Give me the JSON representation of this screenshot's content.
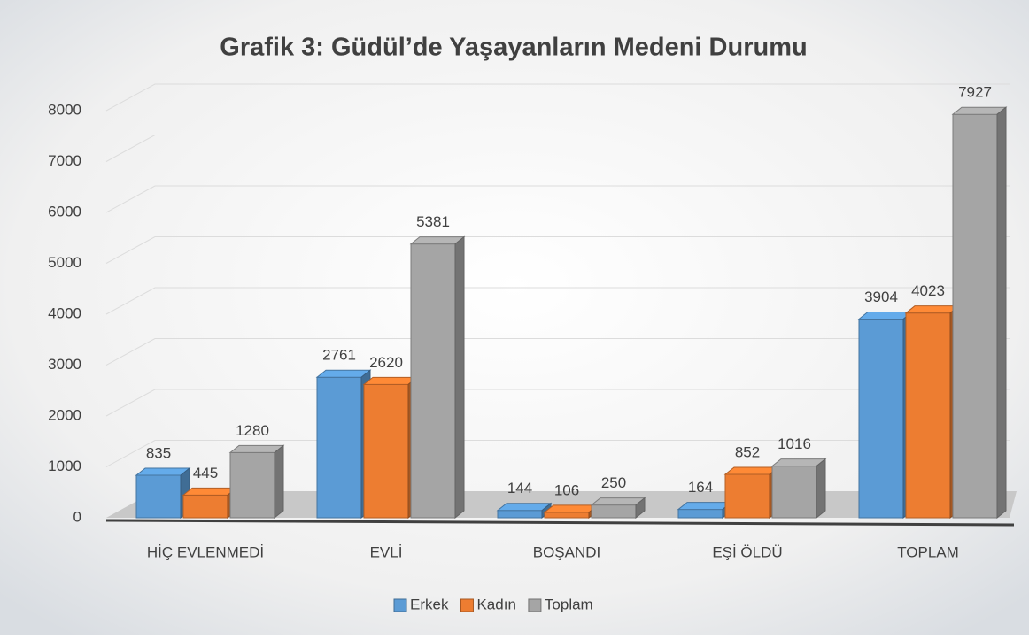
{
  "chart_data": {
    "type": "bar3d",
    "title": "Grafik 3: Güdül’de Yaşayanların Medeni Durumu",
    "categories": [
      "HİÇ EVLENMEDİ",
      "EVLİ",
      "BOŞANDI",
      "EŞİ ÖLDÜ",
      "TOPLAM"
    ],
    "series": [
      {
        "name": "Erkek",
        "color": "#5b9bd5",
        "values": [
          835,
          2761,
          144,
          164,
          3904
        ]
      },
      {
        "name": "Kadın",
        "color": "#ed7d31",
        "values": [
          445,
          2620,
          106,
          852,
          4023
        ]
      },
      {
        "name": "Toplam",
        "color": "#a5a5a5",
        "values": [
          1280,
          5381,
          250,
          1016,
          7927
        ]
      }
    ],
    "ylim": [
      0,
      8000
    ],
    "yticks": [
      0,
      1000,
      2000,
      3000,
      4000,
      5000,
      6000,
      7000,
      8000
    ],
    "grid": true,
    "legend": "bottom"
  }
}
